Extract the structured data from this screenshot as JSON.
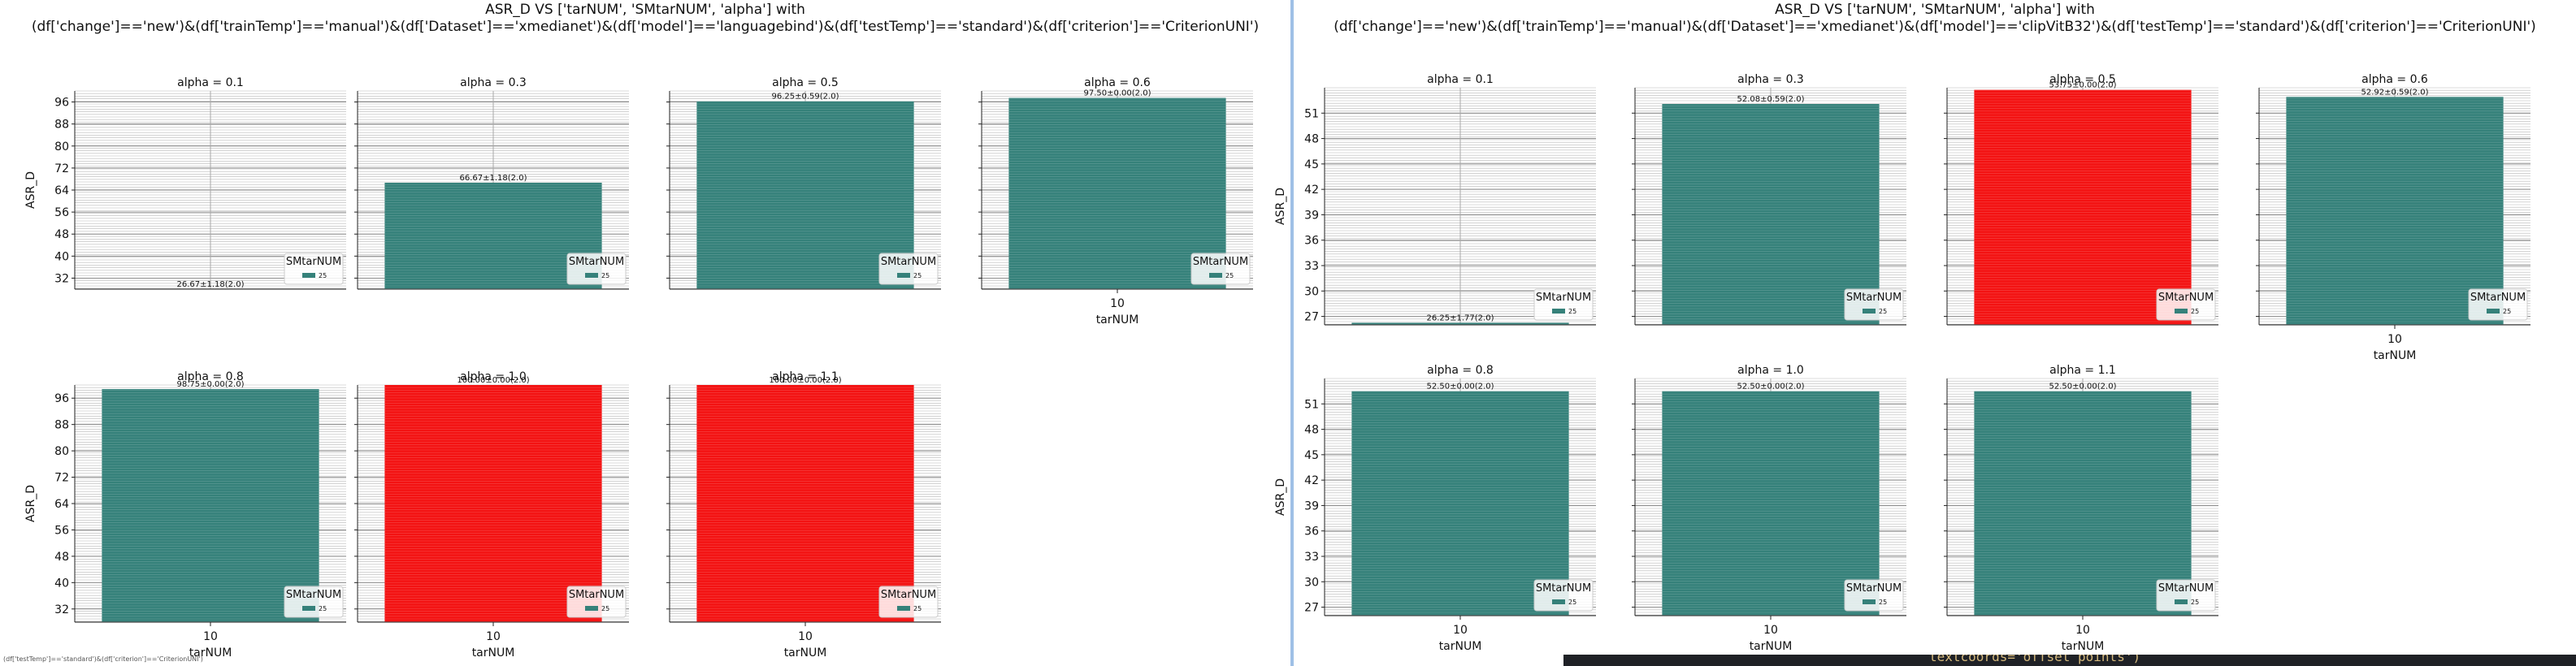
{
  "left_figure": {
    "title_line1": "ASR_D VS ['tarNUM', 'SMtarNUM', 'alpha'] with",
    "title_line2": "(df['change']=='new')&(df['trainTemp']=='manual')&(df['Dataset']=='xmedianet')&(df['model']=='languagebind')&(df['testTemp']=='standard')&(df['criterion']=='CriterionUNI')"
  },
  "right_figure": {
    "title_line1": "ASR_D VS ['tarNUM', 'SMtarNUM', 'alpha'] with",
    "title_line2": "(df['change']=='new')&(df['trainTemp']=='manual')&(df['Dataset']=='xmedianet')&(df['model']=='clipVitB32')&(df['testTemp']=='standard')&(df['criterion']=='CriterionUNI')"
  },
  "status_text": "(df['testTemp']=='standard')&(df['criterion']=='CriterionUNI')",
  "terminal_text": "textcoords='offset points')",
  "colors": {
    "teal": "#35817a",
    "red": "#f31212",
    "grid": "#b8b8b8"
  },
  "chart_data": [
    {
      "type": "bar",
      "figure": "left",
      "ylabel": "ASR_D",
      "xlabel": "tarNUM",
      "ylim": [
        28,
        100
      ],
      "yticks": [
        32,
        40,
        48,
        56,
        64,
        72,
        80,
        88,
        96
      ],
      "legend": {
        "title": "SMtarNUM",
        "entry": "25",
        "placement": "lower right"
      },
      "grid": true,
      "panels": [
        {
          "title": "alpha = 0.1",
          "category": "10",
          "value": 26.67,
          "label": "26.67±1.18(2.0)",
          "color": "#35817a"
        },
        {
          "title": "alpha = 0.3",
          "category": "10",
          "value": 66.67,
          "label": "66.67±1.18(2.0)",
          "color": "#35817a"
        },
        {
          "title": "alpha = 0.5",
          "category": "10",
          "value": 96.25,
          "label": "96.25±0.59(2.0)",
          "color": "#35817a"
        },
        {
          "title": "alpha = 0.6",
          "category": "10",
          "value": 97.5,
          "label": "97.50±0.00(2.0)",
          "color": "#35817a"
        },
        {
          "title": "alpha = 0.8",
          "category": "10",
          "value": 98.75,
          "label": "98.75±0.00(2.0)",
          "color": "#35817a"
        },
        {
          "title": "alpha = 1.0",
          "category": "10",
          "value": 100.0,
          "label": "100.00±0.00(2.0)",
          "color": "#f31212"
        },
        {
          "title": "alpha = 1.1",
          "category": "10",
          "value": 100.0,
          "label": "100.00±0.00(2.0)",
          "color": "#f31212"
        }
      ]
    },
    {
      "type": "bar",
      "figure": "right",
      "ylabel": "ASR_D",
      "xlabel": "tarNUM",
      "ylim": [
        26,
        54
      ],
      "yticks": [
        27,
        30,
        33,
        36,
        39,
        42,
        45,
        48,
        51
      ],
      "legend": {
        "title": "SMtarNUM",
        "entry": "25",
        "placement": "lower right"
      },
      "grid": true,
      "panels": [
        {
          "title": "alpha = 0.1",
          "category": "10",
          "value": 26.25,
          "label": "26.25±1.77(2.0)",
          "color": "#35817a"
        },
        {
          "title": "alpha = 0.3",
          "category": "10",
          "value": 52.08,
          "label": "52.08±0.59(2.0)",
          "color": "#35817a"
        },
        {
          "title": "alpha = 0.5",
          "category": "10",
          "value": 53.75,
          "label": "53.75±0.00(2.0)",
          "color": "#f31212"
        },
        {
          "title": "alpha = 0.6",
          "category": "10",
          "value": 52.92,
          "label": "52.92±0.59(2.0)",
          "color": "#35817a"
        },
        {
          "title": "alpha = 0.8",
          "category": "10",
          "value": 52.5,
          "label": "52.50±0.00(2.0)",
          "color": "#35817a"
        },
        {
          "title": "alpha = 1.0",
          "category": "10",
          "value": 52.5,
          "label": "52.50±0.00(2.0)",
          "color": "#35817a"
        },
        {
          "title": "alpha = 1.1",
          "category": "10",
          "value": 52.5,
          "label": "52.50±0.00(2.0)",
          "color": "#35817a"
        }
      ]
    }
  ]
}
